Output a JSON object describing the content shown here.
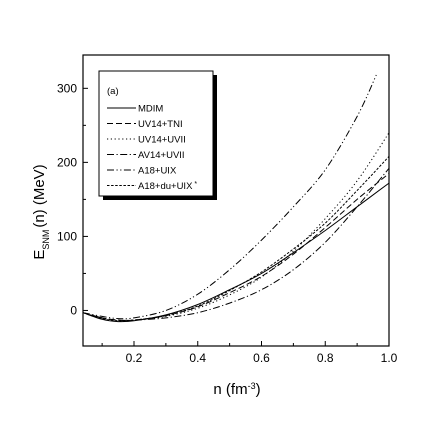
{
  "chart_data": {
    "type": "line",
    "panel_label": "(a)",
    "xlabel": "n (fm",
    "xlabel_sup": "-3",
    "xlabel_close": ")",
    "ylabel_main": "E",
    "ylabel_sub": "SNM",
    "ylabel_rest": "(n) (MeV)",
    "xlim": [
      0.04,
      1.0
    ],
    "ylim": [
      -48,
      345
    ],
    "x_ticks": [
      0.2,
      0.4,
      0.6,
      0.8,
      1.0
    ],
    "x_tick_labels": [
      "0.2",
      "0.4",
      "0.6",
      "0.8",
      "1.0"
    ],
    "y_ticks": [
      0,
      100,
      200,
      300
    ],
    "y_tick_labels": [
      "0",
      "100",
      "200",
      "300"
    ],
    "grid": false,
    "legend_position": "top-left",
    "series": [
      {
        "name": "MDIM",
        "style": "solid",
        "x": [
          0.04,
          0.1,
          0.15,
          0.2,
          0.3,
          0.4,
          0.5,
          0.6,
          0.7,
          0.8,
          0.9,
          1.0
        ],
        "y": [
          -3,
          -12,
          -15,
          -14,
          -6,
          8,
          28,
          50,
          78,
          108,
          140,
          172
        ]
      },
      {
        "name": "UV14+TNI",
        "style": "dash",
        "x": [
          0.04,
          0.1,
          0.15,
          0.2,
          0.3,
          0.4,
          0.5,
          0.6,
          0.7,
          0.8,
          0.9,
          1.0
        ],
        "y": [
          -3,
          -10,
          -13,
          -13,
          -7,
          5,
          24,
          46,
          76,
          112,
          150,
          185
        ]
      },
      {
        "name": "UV14+UVII",
        "style": "dot",
        "x": [
          0.04,
          0.1,
          0.15,
          0.2,
          0.3,
          0.4,
          0.5,
          0.6,
          0.7,
          0.8,
          0.9,
          1.0
        ],
        "y": [
          -3,
          -10,
          -14,
          -13,
          -8,
          3,
          21,
          45,
          80,
          124,
          175,
          240
        ]
      },
      {
        "name": "AV14+UVII",
        "style": "dashdot",
        "x": [
          0.04,
          0.1,
          0.15,
          0.2,
          0.3,
          0.4,
          0.5,
          0.6,
          0.7,
          0.8,
          0.9,
          1.0
        ],
        "y": [
          -3,
          -10,
          -13,
          -13,
          -10,
          -3,
          10,
          28,
          55,
          92,
          140,
          192
        ]
      },
      {
        "name": "A18+UIX",
        "style": "dashdotdot",
        "x": [
          0.04,
          0.1,
          0.15,
          0.2,
          0.3,
          0.4,
          0.5,
          0.6,
          0.7,
          0.8,
          0.9,
          0.96
        ],
        "y": [
          -3,
          -8,
          -11,
          -10,
          0,
          22,
          55,
          95,
          140,
          190,
          262,
          318
        ]
      },
      {
        "name": "A18+du+UIX",
        "style": "shortdot",
        "legend_suffix": "*",
        "x": [
          0.04,
          0.1,
          0.15,
          0.2,
          0.3,
          0.4,
          0.5,
          0.6,
          0.7,
          0.8,
          0.9,
          1.0
        ],
        "y": [
          -3,
          -11,
          -14,
          -13,
          -7,
          6,
          27,
          52,
          83,
          118,
          162,
          208
        ]
      }
    ]
  }
}
